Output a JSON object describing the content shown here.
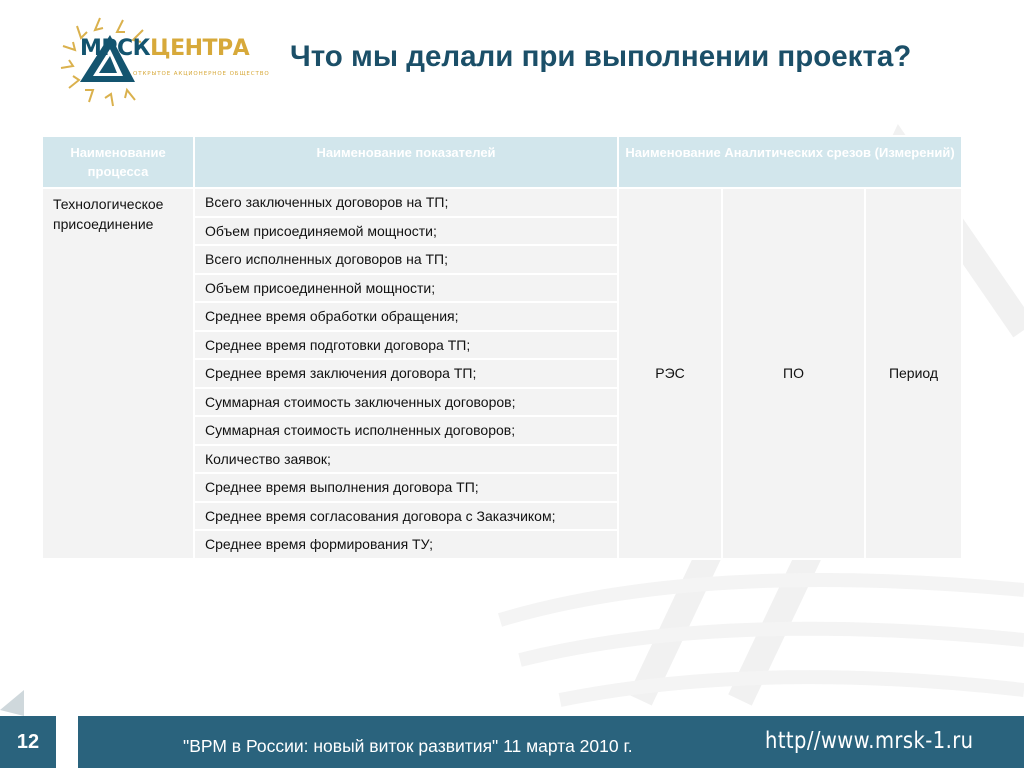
{
  "logo": {
    "name_dark": "МРСК",
    "name_accent": "ЦЕНТРА",
    "subtitle": "ОТКРЫТОЕ АКЦИОНЕРНОЕ ОБЩЕСТВО"
  },
  "title": "Что мы делали  при выполнении проекта?",
  "table": {
    "headers": {
      "process": "Наименование процесса",
      "indicators": "Наименование показателей",
      "slices": "Наименование Аналитических срезов (Измерений)"
    },
    "process": "Технологическое присоединение",
    "indicators": [
      "Всего заключенных договоров на ТП;",
      "Объем присоединяемой мощности;",
      "Всего исполненных договоров на ТП;",
      "Объем присоединенной мощности;",
      "Среднее время обработки обращения;",
      "Среднее время подготовки договора ТП;",
      "Среднее время заключения договора ТП;",
      "Суммарная стоимость заключенных договоров;",
      "Суммарная стоимость исполненных договоров;",
      "Количество заявок;",
      "Среднее время выполнения договора ТП;",
      "Среднее время согласования договора с Заказчиком;",
      "Среднее время формирования ТУ;"
    ],
    "dimensions": [
      "РЭС",
      "ПО",
      "Период"
    ]
  },
  "footer": {
    "page_number": "12",
    "text": "\"ВРМ в России: новый виток развития\" 11 марта 2010 г.",
    "url": "http//www.mrsk-1.ru"
  },
  "colors": {
    "title": "#1b4f68",
    "bar": "#2a637d",
    "header_bg": "#d2e6ec",
    "cell_bg": "#f3f3f3",
    "logo_gold": "#d7a93a"
  }
}
